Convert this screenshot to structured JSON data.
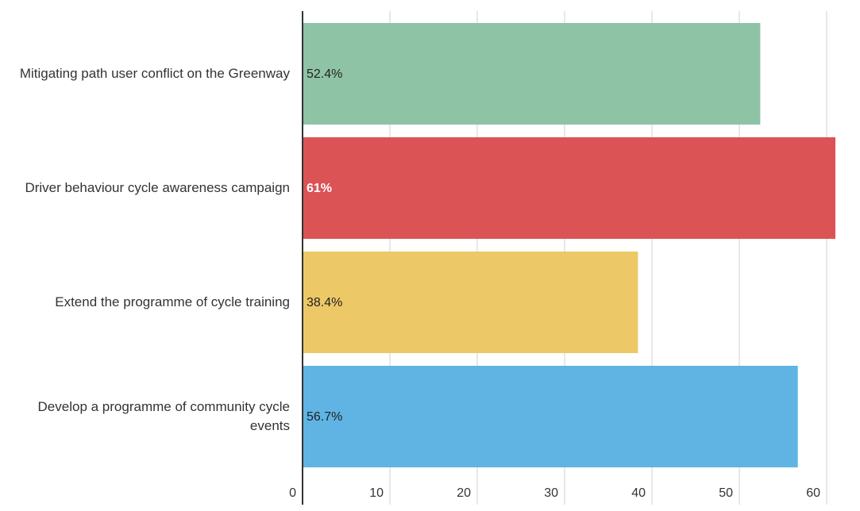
{
  "chart_data": {
    "type": "bar",
    "orientation": "horizontal",
    "categories": [
      "Mitigating path user conflict on the Greenway",
      "Driver behaviour cycle awareness campaign",
      "Extend the programme of cycle training",
      "Develop a programme of community cycle events"
    ],
    "values": [
      52.4,
      61,
      38.4,
      56.7
    ],
    "value_labels": [
      "52.4%",
      "61%",
      "38.4%",
      "56.7%"
    ],
    "colors": [
      "#8fc3a6",
      "#dc5355",
      "#edc867",
      "#5fb4e3"
    ],
    "value_label_colors": [
      "#222222",
      "#ffffff",
      "#222222",
      "#222222"
    ],
    "xlim": [
      0,
      63
    ],
    "xticks": [
      0,
      10,
      20,
      30,
      40,
      50,
      60
    ],
    "grid": true
  }
}
